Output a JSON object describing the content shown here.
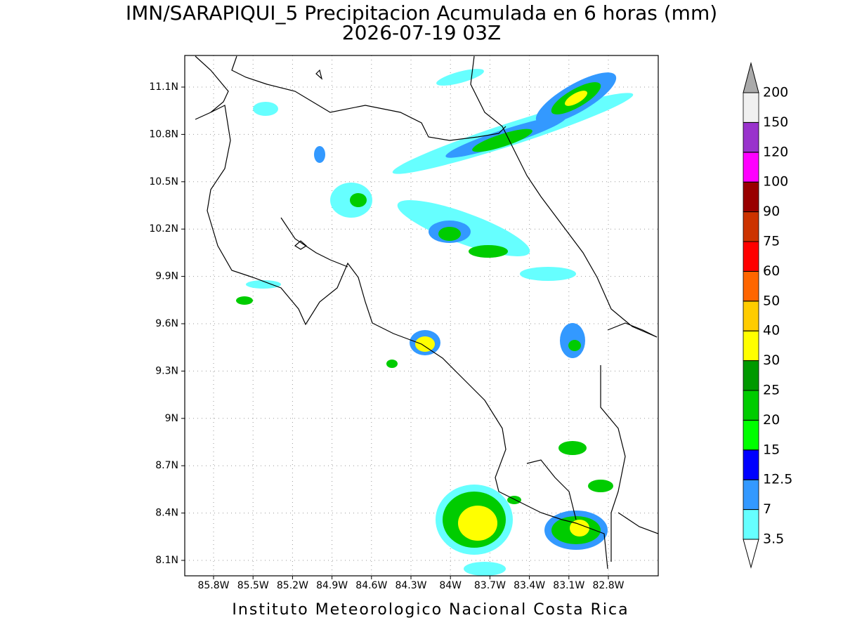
{
  "title": "IMN/SARAPIQUI_5 Precipitacion Acumulada en 6 horas (mm)",
  "subtitle": "2026-07-19 03Z",
  "footer": "Instituto Meteorologico Nacional Costa Rica",
  "map": {
    "lat_labels": [
      "11.1N",
      "10.8N",
      "10.5N",
      "10.2N",
      "9.9N",
      "9.6N",
      "9.3N",
      "9N",
      "8.7N",
      "8.4N",
      "8.1N"
    ],
    "lon_labels": [
      "85.8W",
      "85.5W",
      "85.2W",
      "84.9W",
      "84.6W",
      "84.3W",
      "84W",
      "83.7W",
      "83.4W",
      "83.1W",
      "82.8W"
    ]
  },
  "colorbar": {
    "levels": [
      3.5,
      7,
      12.5,
      15,
      20,
      25,
      30,
      40,
      50,
      60,
      75,
      90,
      100,
      120,
      150,
      200
    ],
    "colors": [
      "#66ffff",
      "#3399ff",
      "#0000ff",
      "#00ff00",
      "#00cc00",
      "#009900",
      "#ffff00",
      "#ffcc00",
      "#ff6600",
      "#ff0000",
      "#cc3300",
      "#990000",
      "#ff00ff",
      "#9933cc",
      "#f0f0f0"
    ],
    "below_color": "#ffffff",
    "above_color": "#aaaaaa"
  }
}
